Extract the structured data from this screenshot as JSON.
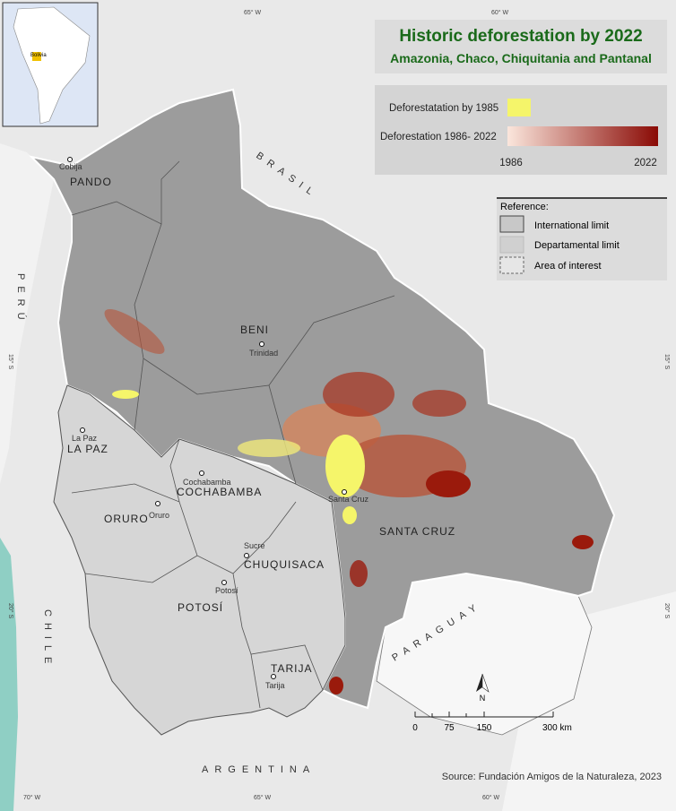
{
  "title": "Historic deforestation by 2022",
  "subtitle": "Amazonia, Chaco, Chiquitania and Pantanal",
  "legend": {
    "pre1985": "Deforestatation by 1985",
    "period": "Deforestation 1986- 2022",
    "start": "1986",
    "end": "2022"
  },
  "reference": {
    "heading": "Reference:",
    "items": [
      "International limit",
      "Departamental limit",
      "Area of interest"
    ]
  },
  "departments": [
    "PANDO",
    "BENI",
    "LA PAZ",
    "COCHABAMBA",
    "ORURO",
    "CHUQUISACA",
    "POTOSÍ",
    "TARIJA",
    "SANTA CRUZ"
  ],
  "cities": [
    "Cobija",
    "Trinidad",
    "La Paz",
    "Cochabamba",
    "Oruro",
    "Santa Cruz",
    "Sucre",
    "Potosí",
    "Tarija"
  ],
  "countries": [
    "BRASIL",
    "PERÚ",
    "CHILE",
    "PARAGUAY",
    "ARGENTINA"
  ],
  "graticule": [
    "65° W",
    "60° W",
    "15° S",
    "15° S",
    "20° S",
    "20° S",
    "70° W",
    "65° W",
    "60° W"
  ],
  "inset_label": "Bolivia",
  "scale": {
    "labels": [
      "0",
      "75",
      "150",
      "300 km"
    ]
  },
  "north": "N",
  "source": "Source: Fundación Amigos de la Naturaleza, 2023"
}
